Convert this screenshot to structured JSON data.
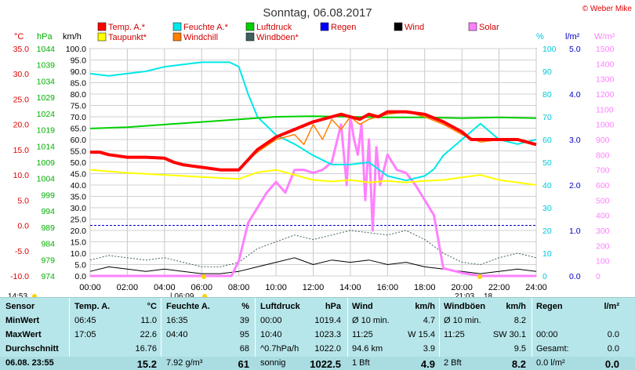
{
  "header": {
    "title": "Sonntag, 06.08.2017",
    "copyright": "© Weber Mike"
  },
  "legend": [
    {
      "label": "Temp. A.*",
      "color": "#ff0000"
    },
    {
      "label": "Feuchte A.*",
      "color": "#00e8e8"
    },
    {
      "label": "Luftdruck",
      "color": "#00d000"
    },
    {
      "label": "Regen",
      "color": "#0000ff"
    },
    {
      "label": "Wind",
      "color": "#000000"
    },
    {
      "label": "Solar",
      "color": "#ff80ff"
    },
    {
      "label": "Taupunkt*",
      "color": "#ffff00"
    },
    {
      "label": "Windchill",
      "color": "#ff8000"
    },
    {
      "label": "Windböen*",
      "color": "#406060"
    }
  ],
  "axis_units": {
    "temp": "°C",
    "pressure": "hPa",
    "wind": "km/h",
    "humidity": "%",
    "rain": "l/m²",
    "solar": "W/m²"
  },
  "axis_ticks": {
    "temp": [
      "35.0",
      "30.0",
      "25.0",
      "20.0",
      "15.0",
      "10.0",
      "5.0",
      "0.0",
      "-5.0",
      "-10.0"
    ],
    "pressure": [
      "1044",
      "1039",
      "1034",
      "1029",
      "1024",
      "1019",
      "1014",
      "1009",
      "1004",
      "999",
      "994",
      "989",
      "984",
      "979",
      "974"
    ],
    "wind": [
      "100.0",
      "95.0",
      "90.0",
      "85.0",
      "80.0",
      "75.0",
      "70.0",
      "65.0",
      "60.0",
      "55.0",
      "50.0",
      "45.0",
      "40.0",
      "35.0",
      "30.0",
      "25.0",
      "20.0",
      "15.0",
      "10.0",
      "5.0",
      "0.0"
    ],
    "humidity": [
      "100",
      "90",
      "80",
      "70",
      "60",
      "50",
      "40",
      "30",
      "20",
      "10",
      "0"
    ],
    "rain": [
      "5.0",
      "4.0",
      "3.0",
      "2.0",
      "1.0",
      "0.0"
    ],
    "solar": [
      "1500",
      "1400",
      "1300",
      "1200",
      "1100",
      "1000",
      "900",
      "800",
      "700",
      "600",
      "500",
      "400",
      "300",
      "200",
      "100",
      "0"
    ],
    "time": [
      "00:00",
      "02:00",
      "04:00",
      "06:00",
      "08:00",
      "10:00",
      "12:00",
      "14:00",
      "16:00",
      "18:00",
      "20:00",
      "22:00",
      "24:00"
    ]
  },
  "markers": {
    "sunrise_time": "14:53",
    "sunrise_clock": "06:09",
    "sunset_clock": "21:03",
    "sunset_extra": "18"
  },
  "chart_data": {
    "type": "line",
    "title": "Sonntag, 06.08.2017",
    "x_unit": "hours",
    "xlim": [
      0,
      24
    ],
    "series": [
      {
        "name": "Temp. A.*",
        "axis": "temp",
        "ylim": [
          -10,
          35
        ],
        "color": "#ff0000",
        "x": [
          0,
          0.5,
          1,
          2,
          3,
          4,
          4.5,
          5,
          6,
          7,
          8,
          8.5,
          9,
          10,
          11,
          12,
          13,
          13.5,
          14,
          14.5,
          15,
          15.5,
          16,
          17,
          18,
          19,
          20,
          20.5,
          21,
          22,
          23,
          24
        ],
        "y": [
          14.5,
          14.5,
          14,
          13.5,
          13.5,
          13.3,
          12.5,
          12,
          11.5,
          11,
          11,
          13,
          15,
          17.5,
          19,
          20.5,
          21.5,
          22,
          21.5,
          21,
          22,
          21.5,
          22.5,
          22.5,
          22,
          20.5,
          18.5,
          17,
          17,
          17,
          17,
          16
        ]
      },
      {
        "name": "Feuchte A.*",
        "axis": "humidity",
        "ylim": [
          0,
          100
        ],
        "color": "#00e8e8",
        "x": [
          0,
          1,
          2,
          3,
          4,
          5,
          6,
          7,
          7.5,
          8,
          8.5,
          9,
          10,
          11,
          12,
          13,
          14,
          15,
          16,
          17,
          18,
          18.5,
          19,
          20,
          21,
          22,
          23,
          24
        ],
        "y": [
          89,
          88,
          89,
          90,
          92,
          93,
          94,
          94,
          94,
          92,
          80,
          70,
          62,
          58,
          53,
          49,
          49,
          50,
          44,
          42,
          44,
          47,
          53,
          60,
          67,
          60,
          58,
          60
        ]
      },
      {
        "name": "Luftdruck",
        "axis": "pressure",
        "ylim": [
          974,
          1044
        ],
        "color": "#00d000",
        "x": [
          0,
          2,
          4,
          6,
          8,
          10,
          12,
          14,
          16,
          18,
          20,
          22,
          24
        ],
        "y": [
          1019.4,
          1019.8,
          1020.6,
          1021.4,
          1022.2,
          1023.0,
          1023.2,
          1023.0,
          1022.8,
          1022.8,
          1022.6,
          1022.8,
          1022.6
        ]
      },
      {
        "name": "Taupunkt*",
        "axis": "temp",
        "ylim": [
          -10,
          35
        ],
        "color": "#ffff00",
        "x": [
          0,
          1,
          2,
          3,
          4,
          5,
          6,
          7,
          8,
          9,
          10,
          11,
          12,
          13,
          14,
          15,
          16,
          17,
          18,
          19,
          20,
          21,
          22,
          23,
          24
        ],
        "y": [
          11,
          10.7,
          10.4,
          10.2,
          10,
          9.8,
          9.6,
          9.4,
          9.2,
          10.5,
          11,
          10,
          9,
          8.7,
          9,
          8.5,
          8.8,
          8.5,
          8.8,
          9,
          9.5,
          10,
          9,
          8.5,
          8
        ]
      },
      {
        "name": "Windchill",
        "axis": "temp",
        "ylim": [
          -10,
          35
        ],
        "color": "#ff8000",
        "x": [
          8.5,
          9,
          10,
          11,
          11.5,
          12,
          12.5,
          13,
          13.5,
          14,
          14.5,
          15,
          16,
          17,
          18,
          19,
          20,
          21,
          22
        ],
        "y": [
          13,
          14.5,
          17,
          18,
          16,
          20,
          17,
          21,
          19,
          21.5,
          20,
          21,
          22,
          22.5,
          21.5,
          20,
          18,
          16.5,
          17
        ]
      },
      {
        "name": "Solar",
        "axis": "solar",
        "ylim": [
          0,
          1500
        ],
        "color": "#ff80ff",
        "x": [
          0,
          7.6,
          8,
          8.5,
          9,
          9.5,
          10,
          10.5,
          11,
          11.5,
          12,
          12.5,
          13,
          13.5,
          13.8,
          14,
          14.2,
          14.4,
          14.6,
          14.8,
          15,
          15.2,
          15.4,
          15.6,
          16,
          16.5,
          17,
          17.5,
          18,
          18.5,
          19,
          20,
          21,
          24
        ],
        "y": [
          0,
          0,
          100,
          350,
          450,
          550,
          620,
          550,
          700,
          700,
          680,
          700,
          750,
          1000,
          600,
          1050,
          900,
          800,
          1000,
          500,
          900,
          300,
          850,
          600,
          800,
          700,
          680,
          600,
          500,
          400,
          50,
          20,
          0,
          0
        ]
      },
      {
        "name": "Wind",
        "axis": "wind",
        "ylim": [
          0,
          100
        ],
        "color": "#000000",
        "x": [
          0,
          1,
          2,
          3,
          4,
          5,
          6,
          7,
          8,
          9,
          10,
          11,
          12,
          13,
          14,
          15,
          16,
          17,
          18,
          19,
          20,
          21,
          22,
          23,
          24
        ],
        "y": [
          2,
          4,
          3,
          2,
          3,
          2,
          1,
          1,
          2,
          4,
          6,
          8,
          5,
          7,
          6,
          7,
          5,
          6,
          4,
          3,
          2,
          1,
          2,
          3,
          2
        ]
      },
      {
        "name": "Windböen*",
        "axis": "wind",
        "ylim": [
          0,
          100
        ],
        "color": "#406060",
        "x": [
          0,
          1,
          2,
          3,
          4,
          5,
          6,
          7,
          8,
          9,
          10,
          11,
          12,
          13,
          14,
          15,
          16,
          17,
          18,
          19,
          20,
          21,
          22,
          23,
          24
        ],
        "y": [
          7,
          9,
          8,
          7,
          8,
          6,
          4,
          4,
          6,
          12,
          15,
          18,
          16,
          18,
          20,
          19,
          18,
          20,
          16,
          10,
          6,
          5,
          8,
          10,
          8
        ]
      }
    ]
  },
  "table": {
    "headers": [
      "Sensor",
      "Temp. A.",
      "°C",
      "Feuchte A.",
      "%",
      "Luftdruck",
      "hPa",
      "Wind",
      "km/h",
      "Windböen",
      "km/h",
      "Regen",
      "l/m²"
    ],
    "rows": [
      {
        "label": "MinWert",
        "cells": [
          "06:45",
          "11.0",
          "16:35",
          "39",
          "00:00",
          "1019.4",
          "Ø 10 min.",
          "4.7",
          "Ø 10 min.",
          "8.2",
          "",
          ""
        ]
      },
      {
        "label": "MaxWert",
        "cells": [
          "17:05",
          "22.6",
          "04:40",
          "95",
          "10:40",
          "1023.3",
          "11:25",
          "W 15.4",
          "11:25",
          "SW 30.1",
          "00:00",
          "0.0"
        ]
      },
      {
        "label": "Durchschnitt",
        "cells": [
          "",
          "16.76",
          "",
          "68",
          "^0.7hPa/h",
          "1022.0",
          "94.6 km",
          "3.9",
          "",
          "9.5",
          "Gesamt:",
          "0.0"
        ]
      },
      {
        "label": "06.08. 23:55",
        "cells": [
          "",
          "15.2",
          "7.92 g/m³",
          "61",
          "sonnig",
          "1022.5",
          "1 Bft",
          "4.9",
          "2 Bft",
          "8.2",
          "0.0 l/m²",
          "0.0"
        ]
      }
    ]
  }
}
